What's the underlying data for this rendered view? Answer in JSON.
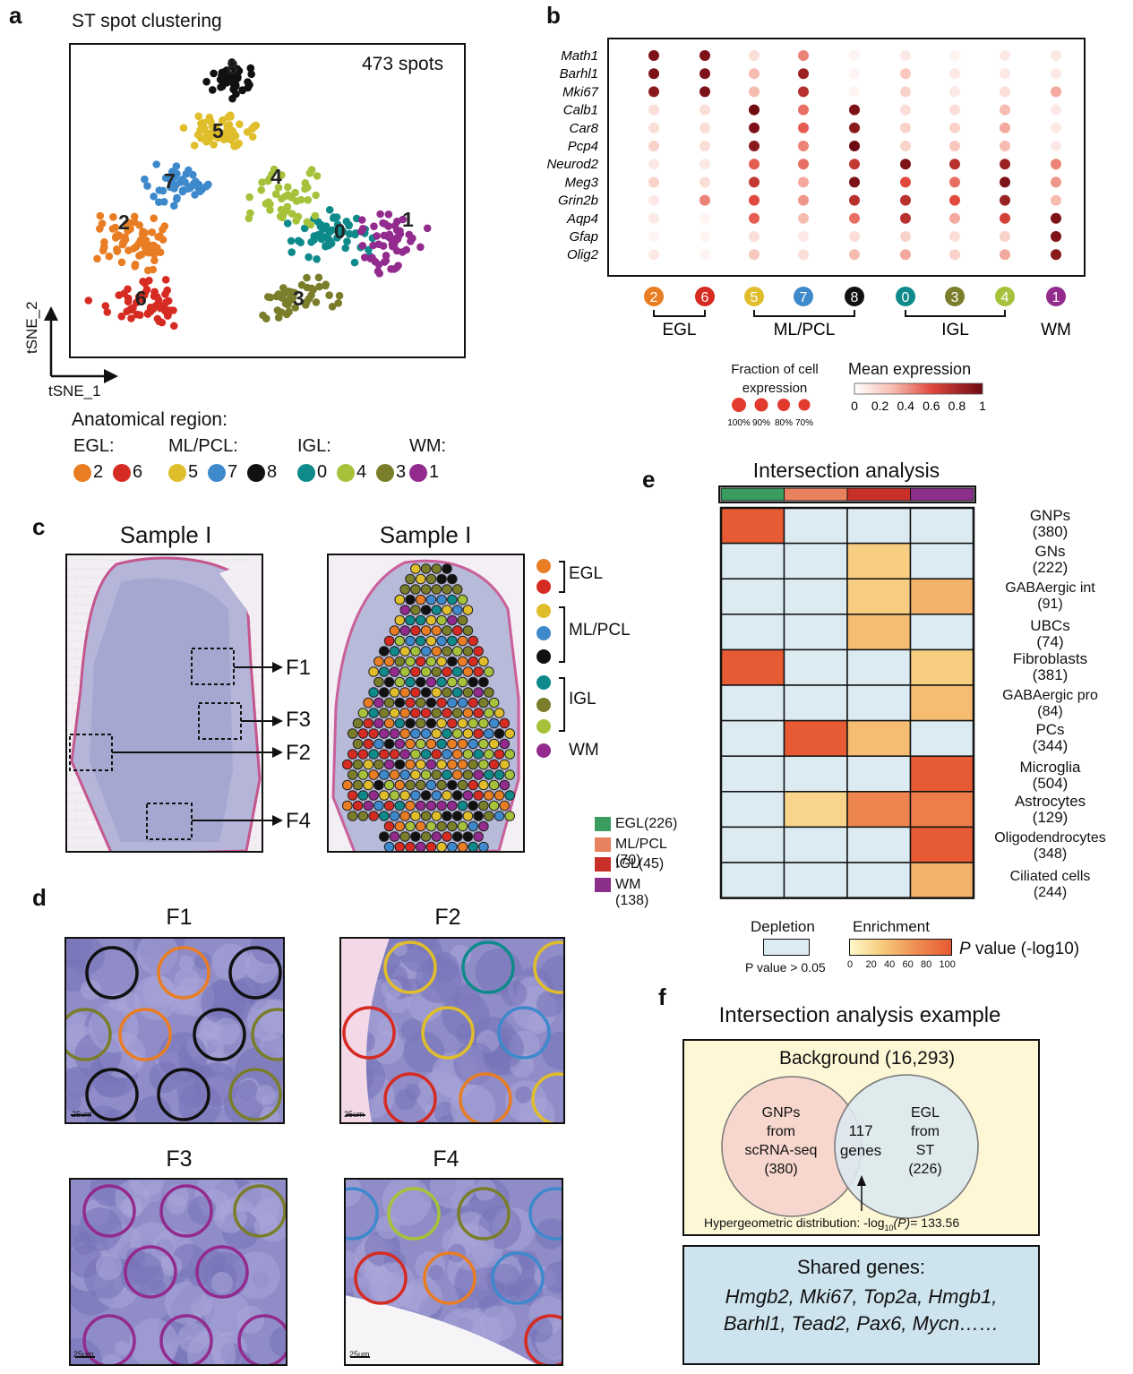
{
  "panels": {
    "a": "a",
    "b": "b",
    "c": "c",
    "d": "d",
    "e": "e",
    "f": "f"
  },
  "colors": {
    "c0": "#0e8a8a",
    "c1": "#932a8e",
    "c2": "#e87d24",
    "c3": "#7a7d2a",
    "c4": "#a6c23a",
    "c5": "#e0be2b",
    "c6": "#d62b22",
    "c7": "#3d89cc",
    "c8": "#111111"
  },
  "panel_a": {
    "title": "ST spot clustering",
    "spots_label": "473 spots",
    "cluster_labels": [
      "0",
      "1",
      "2",
      "3",
      "4",
      "5",
      "6",
      "7",
      "8"
    ],
    "axis_x": "tSNE_1",
    "axis_y": "tSNE_2",
    "legend_title": "Anatomical region:",
    "legend_groups": [
      {
        "name": "EGL:",
        "clusters": [
          "2",
          "6"
        ]
      },
      {
        "name": "ML/PCL:",
        "clusters": [
          "5",
          "7",
          "8"
        ]
      },
      {
        "name": "IGL:",
        "clusters": [
          "0",
          "4",
          "3"
        ]
      },
      {
        "name": "WM:",
        "clusters": [
          "1"
        ]
      }
    ]
  },
  "chart_data": {
    "type": "dotplot",
    "genes": [
      "Math1",
      "Barhl1",
      "Mki67",
      "Calb1",
      "Car8",
      "Pcp4",
      "Neurod2",
      "Meg3",
      "Grin2b",
      "Aqp4",
      "Gfap",
      "Olig2"
    ],
    "clusters": [
      "2",
      "6",
      "5",
      "7",
      "8",
      "0",
      "3",
      "4",
      "1"
    ],
    "mean_expression": [
      [
        0.95,
        0.95,
        0.15,
        0.45,
        0.05,
        0.1,
        0.05,
        0.1,
        0.1
      ],
      [
        0.95,
        0.95,
        0.3,
        0.85,
        0.05,
        0.25,
        0.1,
        0.1,
        0.1
      ],
      [
        0.9,
        0.95,
        0.3,
        0.75,
        0.05,
        0.2,
        0.1,
        0.15,
        0.35
      ],
      [
        0.15,
        0.15,
        1.0,
        0.5,
        0.95,
        0.15,
        0.15,
        0.3,
        0.1
      ],
      [
        0.15,
        0.15,
        0.95,
        0.55,
        0.9,
        0.2,
        0.2,
        0.35,
        0.1
      ],
      [
        0.2,
        0.15,
        0.9,
        0.45,
        1.0,
        0.2,
        0.25,
        0.3,
        0.1
      ],
      [
        0.1,
        0.1,
        0.55,
        0.5,
        0.7,
        0.95,
        0.75,
        0.85,
        0.45
      ],
      [
        0.2,
        0.15,
        0.7,
        0.35,
        0.95,
        0.6,
        0.5,
        0.95,
        0.4
      ],
      [
        0.1,
        0.45,
        0.6,
        0.4,
        0.75,
        0.75,
        0.6,
        0.85,
        0.3
      ],
      [
        0.1,
        0.05,
        0.55,
        0.3,
        0.5,
        0.75,
        0.35,
        0.65,
        0.95
      ],
      [
        0.05,
        0.05,
        0.15,
        0.1,
        0.15,
        0.2,
        0.15,
        0.2,
        0.95
      ],
      [
        0.1,
        0.05,
        0.25,
        0.15,
        0.3,
        0.35,
        0.2,
        0.35,
        0.9
      ]
    ],
    "groups": [
      {
        "name": "EGL",
        "clusters": [
          "2",
          "6"
        ]
      },
      {
        "name": "ML/PCL",
        "clusters": [
          "5",
          "7",
          "8"
        ]
      },
      {
        "name": "IGL",
        "clusters": [
          "0",
          "3",
          "4"
        ]
      },
      {
        "name": "WM",
        "clusters": [
          "1"
        ]
      }
    ],
    "fraction_legend_title": "Fraction of cell expression",
    "fraction_legend": [
      "100%",
      "90%",
      "80%",
      "70%"
    ],
    "mean_legend_title": "Mean expression",
    "mean_legend_ticks": [
      "0",
      "0.2",
      "0.4",
      "0.6",
      "0.8",
      "1"
    ],
    "heatmap": {
      "title": "Intersection analysis",
      "cell_types": [
        {
          "name": "GNPs",
          "count": "(380)"
        },
        {
          "name": "GNs",
          "count": "(222)"
        },
        {
          "name": "GABAergic int",
          "count": "(91)"
        },
        {
          "name": "UBCs",
          "count": "(74)"
        },
        {
          "name": "Fibroblasts",
          "count": "(381)"
        },
        {
          "name": "GABAergic pro",
          "count": "(84)"
        },
        {
          "name": "PCs",
          "count": "(344)"
        },
        {
          "name": "Microglia",
          "count": "(504)"
        },
        {
          "name": "Astrocytes",
          "count": "(129)"
        },
        {
          "name": "Oligodendrocytes",
          "count": "(348)"
        },
        {
          "name": "Ciliated cells",
          "count": "(244)"
        }
      ],
      "regions": [
        "EGL",
        "ML/PCL",
        "IGL",
        "WM"
      ],
      "neg_log10_p": [
        [
          100,
          null,
          null,
          null
        ],
        [
          null,
          null,
          30,
          null
        ],
        [
          null,
          null,
          30,
          45
        ],
        [
          null,
          null,
          40,
          null
        ],
        [
          100,
          null,
          null,
          30
        ],
        [
          null,
          null,
          null,
          40
        ],
        [
          null,
          100,
          40,
          null
        ],
        [
          null,
          null,
          null,
          100
        ],
        [
          null,
          25,
          70,
          75
        ],
        [
          null,
          null,
          null,
          100
        ],
        [
          null,
          null,
          null,
          45
        ]
      ],
      "region_legend": [
        {
          "label": "EGL(226)",
          "color": "#3a9c5f"
        },
        {
          "label": "ML/PCL (70)",
          "color": "#e8825e"
        },
        {
          "label": "IGL(45)",
          "color": "#c9302a"
        },
        {
          "label": "WM (138)",
          "color": "#8b2f8b"
        }
      ],
      "depletion_label": "Depletion",
      "enrichment_label": "Enrichment",
      "pvalue_label": "P value > 0.05",
      "pscale_ticks": [
        "0",
        "20",
        "40",
        "60",
        "80",
        "100"
      ],
      "pscale_title_p": "P",
      "pscale_title_rest": " value (-log10)"
    }
  },
  "panel_c": {
    "title_left": "Sample I",
    "title_right": "Sample I",
    "fields": [
      "F1",
      "F3",
      "F2",
      "F4"
    ],
    "legend_groups": [
      "EGL",
      "ML/PCL",
      "IGL",
      "WM"
    ]
  },
  "panel_d": {
    "fields": [
      "F1",
      "F2",
      "F3",
      "F4"
    ],
    "scalebar": "25um"
  },
  "panel_f": {
    "title": "Intersection analysis example",
    "background": "Background (16,293)",
    "left_circle": [
      "GNPs",
      "from",
      "scRNA-seq",
      "(380)"
    ],
    "overlap": [
      "117",
      "genes"
    ],
    "right_circle": [
      "EGL",
      "from",
      "ST",
      "(226)"
    ],
    "hyper_prefix": "Hypergeometric distribution: -log",
    "hyper_sub": "10",
    "hyper_p": "(P)",
    "hyper_value": "= 133.56",
    "shared_title": "Shared genes:",
    "shared_line1": "Hmgb2, Mki67, Top2a, Hmgb1,",
    "shared_line2": "Barhl1, Tead2, Pax6, Mycn……"
  }
}
